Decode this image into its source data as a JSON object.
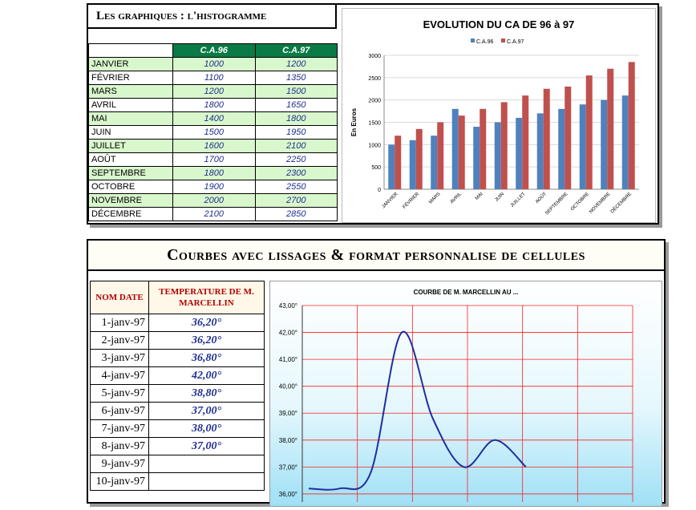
{
  "top": {
    "title": "Les graphiques : l'histogramme",
    "headers": [
      "C.A.96",
      "C.A.97"
    ],
    "rows": [
      {
        "month": "JANVIER",
        "v96": "1000",
        "v97": "1200"
      },
      {
        "month": "FÉVRIER",
        "v96": "1100",
        "v97": "1350"
      },
      {
        "month": "MARS",
        "v96": "1200",
        "v97": "1500"
      },
      {
        "month": "AVRIL",
        "v96": "1800",
        "v97": "1650"
      },
      {
        "month": "MAI",
        "v96": "1400",
        "v97": "1800"
      },
      {
        "month": "JUIN",
        "v96": "1500",
        "v97": "1950"
      },
      {
        "month": "JUILLET",
        "v96": "1600",
        "v97": "2100"
      },
      {
        "month": "AOÛT",
        "v96": "1700",
        "v97": "2250"
      },
      {
        "month": "SEPTEMBRE",
        "v96": "1800",
        "v97": "2300"
      },
      {
        "month": "OCTOBRE",
        "v96": "1900",
        "v97": "2550"
      },
      {
        "month": "NOVEMBRE",
        "v96": "2000",
        "v97": "2700"
      },
      {
        "month": "DÉCEMBRE",
        "v96": "2100",
        "v97": "2850"
      }
    ]
  },
  "bottom": {
    "title": "Courbes avec lissages & format personnalise de cellules",
    "header_date": "NOM DATE",
    "header_temp": "TEMPERATURE DE M. MARCELLIN",
    "rows": [
      {
        "date": "1-janv-97",
        "temp": "36,20°"
      },
      {
        "date": "2-janv-97",
        "temp": "36,20°"
      },
      {
        "date": "3-janv-97",
        "temp": "36,80°"
      },
      {
        "date": "4-janv-97",
        "temp": "42,00°"
      },
      {
        "date": "5-janv-97",
        "temp": "38,80°"
      },
      {
        "date": "6-janv-97",
        "temp": "37,00°"
      },
      {
        "date": "7-janv-97",
        "temp": "38,00°"
      },
      {
        "date": "8-janv-97",
        "temp": "37,00°"
      },
      {
        "date": "9-janv-97",
        "temp": ""
      },
      {
        "date": "10-janv-97",
        "temp": ""
      }
    ]
  },
  "colors": {
    "c96": "#4f81bd",
    "c97": "#c0504d",
    "curve": "#1f2f9c",
    "grid": "#ff2020"
  },
  "chart_data": [
    {
      "type": "bar",
      "title": "EVOLUTION DU CA DE 96 à 97",
      "ylabel": "En Euros",
      "xlabel": "",
      "categories": [
        "JANVIER",
        "FÉVRIER",
        "MARS",
        "AVRIL",
        "MAI",
        "JUIN",
        "JUILLET",
        "AOÛT",
        "SEPTEMBRE",
        "OCTOBRE",
        "NOVEMBRE",
        "DÉCEMBRE"
      ],
      "series": [
        {
          "name": "C.A.96",
          "values": [
            1000,
            1100,
            1200,
            1800,
            1400,
            1500,
            1600,
            1700,
            1800,
            1900,
            2000,
            2100
          ]
        },
        {
          "name": "C.A.97",
          "values": [
            1200,
            1350,
            1500,
            1650,
            1800,
            1950,
            2100,
            2250,
            2300,
            2550,
            2700,
            2850
          ]
        }
      ],
      "ylim": [
        0,
        3000
      ],
      "yticks": [
        "0",
        "500",
        "1000",
        "1500",
        "2000",
        "2500",
        "3000"
      ],
      "legend": "top"
    },
    {
      "type": "line",
      "title": "COURBE DE M. MARCELLIN AU ...",
      "x": [
        1,
        2,
        3,
        4,
        5,
        6,
        7,
        8
      ],
      "values": [
        36.2,
        36.2,
        36.8,
        42.0,
        38.8,
        37.0,
        38.0,
        37.0
      ],
      "ylim": [
        35.7,
        43
      ],
      "yticks": [
        "36,00°",
        "37,00°",
        "38,00°",
        "39,00°",
        "40,00°",
        "41,00°",
        "42,00°",
        "43,00°"
      ],
      "grid": true,
      "smoothed": true
    }
  ]
}
